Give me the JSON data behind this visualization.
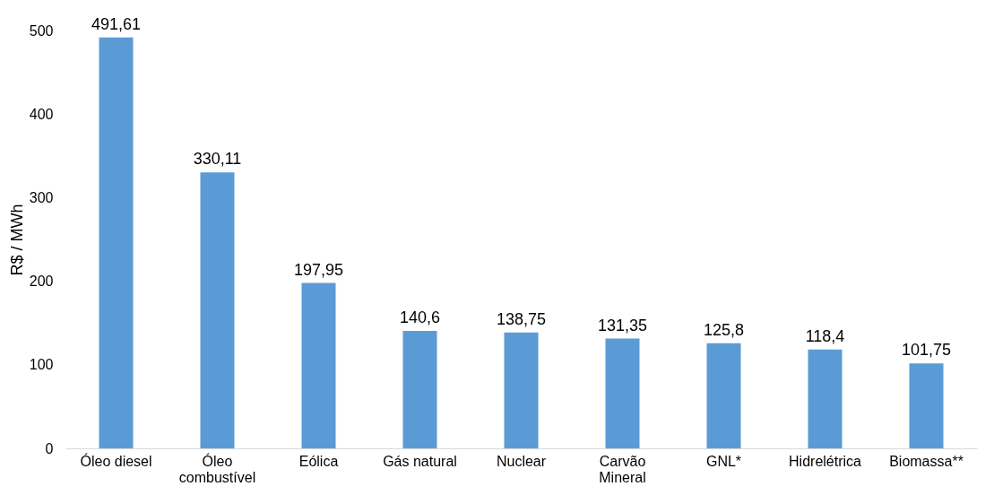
{
  "chart_data": {
    "type": "bar",
    "ylabel": "R$ / MWh",
    "categories": [
      "Óleo diesel",
      "Óleo combustível",
      "Eólica",
      "Gás natural",
      "Nuclear",
      "Carvão Mineral",
      "GNL*",
      "Hidrelétrica",
      "Biomassa**"
    ],
    "values": [
      491.61,
      330.11,
      197.95,
      140.6,
      138.75,
      131.35,
      125.8,
      118.4,
      101.75
    ],
    "value_labels": [
      "491,61",
      "330,11",
      "197,95",
      "140,6",
      "138,75",
      "131,35",
      "125,8",
      "118,4",
      "101,75"
    ],
    "color": "#5b9bd5",
    "ylim": [
      0,
      500
    ],
    "yticks": [
      0,
      100,
      200,
      300,
      400,
      500
    ],
    "grid": false
  }
}
